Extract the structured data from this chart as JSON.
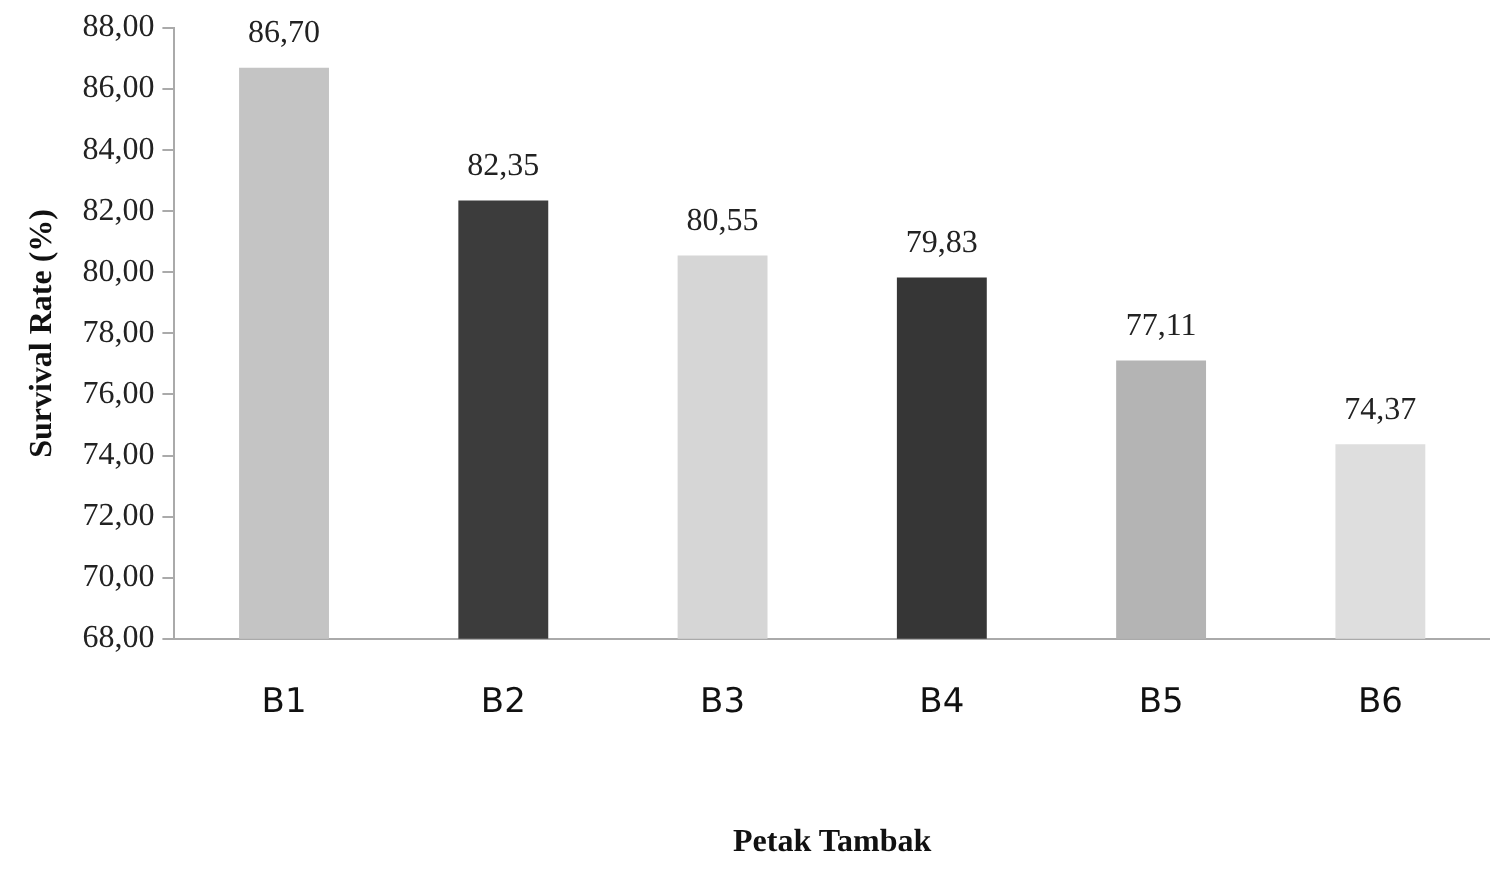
{
  "chart_data": {
    "type": "bar",
    "xlabel": "Petak Tambak",
    "ylabel": "Survival Rate (%)",
    "categories": [
      "B1",
      "B2",
      "B3",
      "B4",
      "B5",
      "B6"
    ],
    "values": [
      86.7,
      82.35,
      80.55,
      79.83,
      77.11,
      74.37
    ],
    "value_labels": [
      "86,70",
      "82,35",
      "80,55",
      "79,83",
      "77,11",
      "74,37"
    ],
    "colors": [
      "#c4c4c4",
      "#3c3c3c",
      "#d6d6d6",
      "#363636",
      "#b4b4b4",
      "#dedede"
    ],
    "ylim": [
      68,
      88
    ],
    "yticks": [
      {
        "value": 68,
        "label": "68,00"
      },
      {
        "value": 70,
        "label": "70,00"
      },
      {
        "value": 72,
        "label": "72,00"
      },
      {
        "value": 74,
        "label": "74,00"
      },
      {
        "value": 76,
        "label": "76,00"
      },
      {
        "value": 78,
        "label": "78,00"
      },
      {
        "value": 80,
        "label": "80,00"
      },
      {
        "value": 82,
        "label": "82,00"
      },
      {
        "value": 84,
        "label": "84,00"
      },
      {
        "value": 86,
        "label": "86,00"
      },
      {
        "value": 88,
        "label": "88,00"
      }
    ],
    "grid": false,
    "legend": false
  }
}
